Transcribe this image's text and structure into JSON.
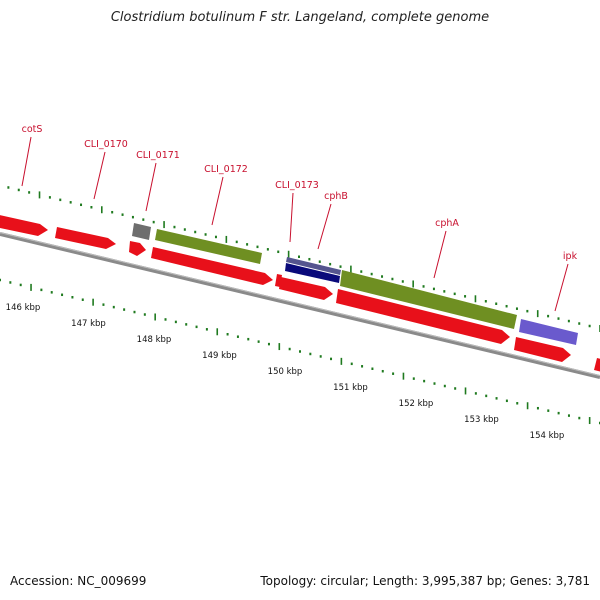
{
  "title": "Clostridium botulinum F str. Langeland, complete genome",
  "footer": {
    "accession": "Accession: NC_009699",
    "summary": "Topology: circular; Length: 3,995,387 bp; Genes: 3,781"
  },
  "colors": {
    "backbone": "#8a8a8a",
    "gene_red": "#e8101a",
    "gene_green": "#6f8f22",
    "gene_gray": "#6e6e6e",
    "gene_navy": "#0a0a7a",
    "gene_slate": "#55558f",
    "gene_purple": "#6a5acd",
    "tick_green": "#1f7a1f",
    "label_red": "#c8102e"
  },
  "gene_labels": [
    {
      "name": "cotS"
    },
    {
      "name": "CLI_0170"
    },
    {
      "name": "CLI_0171"
    },
    {
      "name": "CLI_0172"
    },
    {
      "name": "CLI_0173"
    },
    {
      "name": "cphB"
    },
    {
      "name": "cphA"
    },
    {
      "name": "ipk"
    }
  ],
  "scale_labels": [
    "146 kbp",
    "147 kbp",
    "148 kbp",
    "149 kbp",
    "150 kbp",
    "151 kbp",
    "152 kbp",
    "153 kbp",
    "154 kbp"
  ]
}
